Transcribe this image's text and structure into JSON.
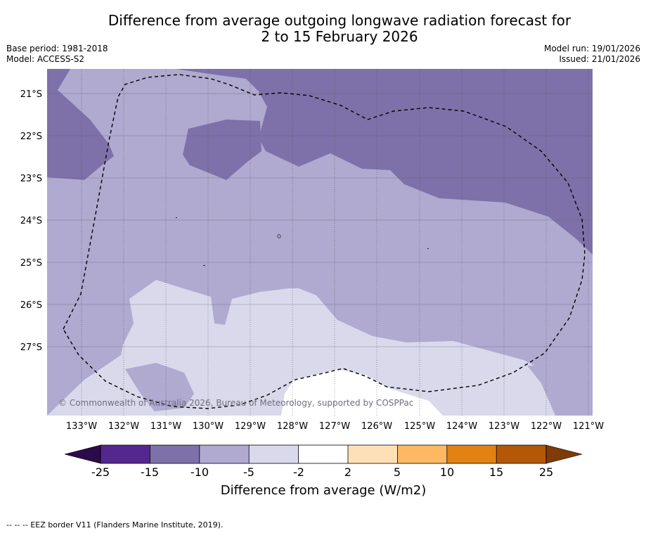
{
  "title": {
    "line1": "Difference from average outgoing longwave radiation forecast for",
    "line2": "2 to 15 February 2026"
  },
  "meta_left": {
    "base_period": "Base period: 1981-2018",
    "model": "Model: ACCESS-S2"
  },
  "meta_right": {
    "model_run": "Model run: 19/01/2026",
    "issued": "Issued: 21/01/2026"
  },
  "map": {
    "lat_labels": [
      "21°S",
      "22°S",
      "23°S",
      "24°S",
      "25°S",
      "26°S",
      "27°S"
    ],
    "lon_labels": [
      "133°W",
      "132°W",
      "131°W",
      "130°W",
      "129°W",
      "128°W",
      "127°W",
      "126°W",
      "125°W",
      "124°W",
      "123°W",
      "122°W",
      "121°W"
    ],
    "copyright": "© Commonwealth of Australia 2026, Bureau of Meteorology, supported by COSPPac",
    "region_categories": [
      "-15 to -10",
      "-10 to -5",
      "-5 to -2",
      "-2 to 2"
    ]
  },
  "colorbar": {
    "ticks": [
      "-25",
      "-15",
      "-10",
      "-5",
      "-2",
      "2",
      "5",
      "10",
      "15",
      "25"
    ],
    "label": "Difference from average (W/m2)",
    "colors": {
      "below_min": "#2d0a4a",
      "-25_to_-15": "#54278f",
      "-15_to_-10": "#7e71a9",
      "-10_to_-5": "#b0a9d0",
      "-5_to_-2": "#d9d9eb",
      "-2_to_2": "#ffffff",
      "2_to_5": "#fee0b6",
      "5_to_10": "#fdb863",
      "10_to_15": "#e08214",
      "15_to_25": "#b35806",
      "above_max": "#7f3b08"
    }
  },
  "legend": {
    "symbol": "--  --  --",
    "text": "EEZ border V11 (Flanders Marine Institute, 2019)."
  }
}
